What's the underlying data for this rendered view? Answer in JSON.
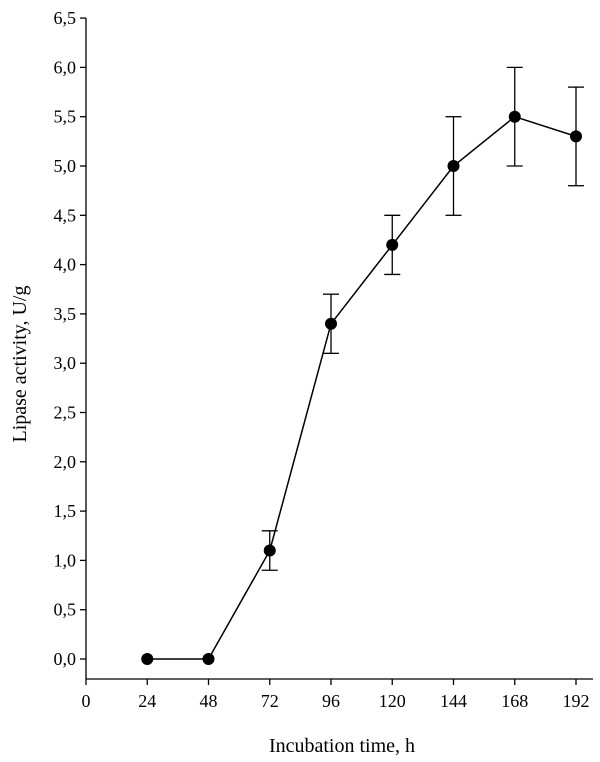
{
  "chart_data": {
    "type": "line",
    "title": "",
    "xlabel": "Incubation time, h",
    "ylabel": "Lipase activity, U/g",
    "xlim": [
      0,
      198
    ],
    "ylim": [
      -0.2,
      6.5
    ],
    "x_ticks": [
      0,
      24,
      48,
      72,
      96,
      120,
      144,
      168,
      192
    ],
    "x_tick_labels": [
      "0",
      "24",
      "48",
      "72",
      "96",
      "120",
      "144",
      "168",
      "192"
    ],
    "y_ticks": [
      0.0,
      0.5,
      1.0,
      1.5,
      2.0,
      2.5,
      3.0,
      3.5,
      4.0,
      4.5,
      5.0,
      5.5,
      6.0,
      6.5
    ],
    "y_tick_labels": [
      "0,0",
      "0,5",
      "1,0",
      "1,5",
      "2,0",
      "2,5",
      "3,0",
      "3,5",
      "4,0",
      "4,5",
      "5,0",
      "5,5",
      "6,0",
      "6,5"
    ],
    "grid": false,
    "legend": "none",
    "series": [
      {
        "x": [
          24,
          48,
          72,
          96,
          120,
          144,
          168,
          192
        ],
        "y": [
          0.0,
          0.0,
          1.1,
          3.4,
          4.2,
          5.0,
          5.5,
          5.3
        ],
        "error": [
          0,
          0,
          0.2,
          0.3,
          0.3,
          0.5,
          0.5,
          0.5
        ],
        "color": "#000000",
        "marker": "filled-circle"
      }
    ]
  }
}
